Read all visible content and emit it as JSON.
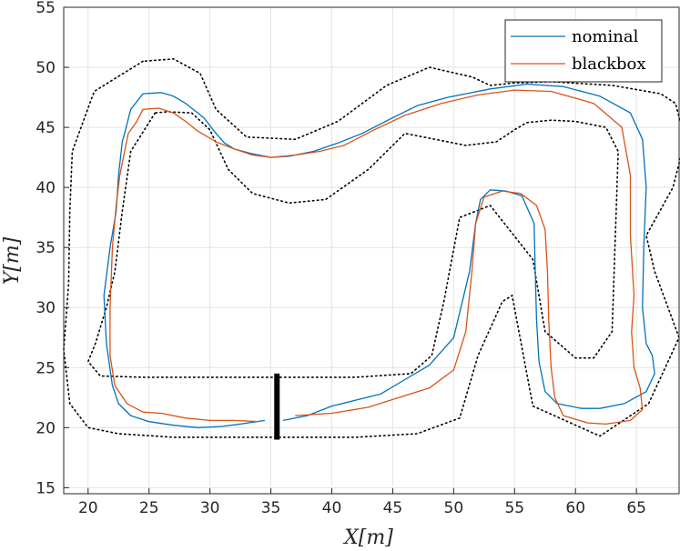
{
  "chart_data": {
    "type": "line",
    "title": "",
    "xlabel": "X[m]",
    "ylabel": "Y[m]",
    "xlim": [
      18,
      68.5
    ],
    "ylim": [
      14.5,
      55
    ],
    "xticks": [
      20,
      25,
      30,
      35,
      40,
      45,
      50,
      55,
      60,
      65
    ],
    "yticks": [
      15,
      20,
      25,
      30,
      35,
      40,
      45,
      50,
      55
    ],
    "grid": true,
    "legend": {
      "placement": "top-right",
      "entries": [
        "nominal",
        "blackbox"
      ]
    },
    "colors": {
      "nominal": "#0072BD",
      "blackbox": "#D95319",
      "boundary": "#000000",
      "finish_line": "#000000"
    },
    "finish_line": {
      "x": [
        35.5,
        35.5
      ],
      "y": [
        19.0,
        24.5
      ]
    },
    "track_outer": {
      "x": [
        24.5,
        20.5,
        18.7,
        18.5,
        18.4,
        18.0,
        18.5,
        20.0,
        22.5,
        27.0,
        32.0,
        37.0,
        42.0,
        47.0,
        50.5,
        52.0,
        54.0,
        54.8,
        56.5,
        62.0,
        66.0,
        68.5,
        66.5,
        65.8,
        68.0,
        69.0,
        68.2,
        67.0,
        63.0,
        58.0,
        55.0,
        53.0,
        51.5,
        48.0,
        44.5,
        40.5,
        37.0,
        33.0,
        30.5,
        29.2,
        27.0,
        24.5
      ],
      "y": [
        50.5,
        48.0,
        43.0,
        38.0,
        32.0,
        26.5,
        22.0,
        20.0,
        19.5,
        19.2,
        19.2,
        19.2,
        19.2,
        19.5,
        20.8,
        26.0,
        30.5,
        31.0,
        21.8,
        19.3,
        22.0,
        27.5,
        33.0,
        36.0,
        40.0,
        44.0,
        47.0,
        47.8,
        48.5,
        48.8,
        48.7,
        48.5,
        49.2,
        50.0,
        48.5,
        45.5,
        44.0,
        44.2,
        46.5,
        49.5,
        50.7,
        50.5
      ]
    },
    "track_inner": {
      "x": [
        25.5,
        23.5,
        22.8,
        22.2,
        21.5,
        20.6,
        20.0,
        21.0,
        24.5,
        28.0,
        35.0,
        42.0,
        46.5,
        48.2,
        49.2,
        50.5,
        53.0,
        56.5,
        57.5,
        60.0,
        61.5,
        63.0,
        63.2,
        63.5,
        62.5,
        60.0,
        58.0,
        56.0,
        55.0,
        53.5,
        51.0,
        46.0,
        43.0,
        39.5,
        36.5,
        33.5,
        31.5,
        30.0,
        28.5,
        26.5,
        25.5
      ],
      "y": [
        46.2,
        43.0,
        38.0,
        33.0,
        30.0,
        27.0,
        25.5,
        24.3,
        24.2,
        24.2,
        24.2,
        24.2,
        24.5,
        26.0,
        30.5,
        37.5,
        38.5,
        34.0,
        28.0,
        25.8,
        25.8,
        28.0,
        34.0,
        43.0,
        45.0,
        45.5,
        45.6,
        45.4,
        44.8,
        43.8,
        43.5,
        44.5,
        41.5,
        39.0,
        38.7,
        39.5,
        41.5,
        44.8,
        46.2,
        46.3,
        46.2
      ]
    },
    "series": [
      {
        "name": "nominal",
        "x": [
          34.5,
          32.5,
          31.0,
          29.0,
          27.0,
          25.0,
          23.5,
          22.5,
          22.0,
          21.5,
          21.3,
          21.8,
          22.3,
          22.5,
          22.8,
          23.0,
          23.5,
          24.5,
          26.0,
          27.0,
          28.0,
          29.5,
          30.5,
          31.2,
          32.0,
          33.5,
          35.0,
          36.5,
          38.5,
          40.5,
          42.5,
          45.0,
          47.0,
          49.5,
          53.0,
          56.0,
          59.0,
          62.0,
          64.5,
          65.5,
          65.8,
          65.6,
          65.5,
          65.8,
          66.3,
          66.5,
          65.8,
          64.0,
          62.0,
          60.5,
          58.5,
          57.5,
          57.0,
          56.8,
          56.7,
          56.6,
          55.6,
          54.3,
          53.0,
          52.2,
          51.8,
          51.3,
          50.0,
          48.0,
          46.0,
          44.0,
          42.0,
          40.0,
          38.0,
          36.0
        ],
        "y": [
          20.6,
          20.3,
          20.1,
          20.0,
          20.2,
          20.5,
          21.0,
          22.0,
          23.5,
          27.0,
          31.0,
          35.0,
          38.0,
          41.0,
          43.8,
          44.5,
          46.5,
          47.8,
          47.9,
          47.6,
          47.0,
          45.8,
          44.5,
          43.7,
          43.2,
          42.8,
          42.5,
          42.6,
          43.0,
          43.7,
          44.5,
          45.8,
          46.8,
          47.5,
          48.2,
          48.6,
          48.4,
          47.6,
          46.2,
          44.0,
          40.0,
          35.0,
          30.0,
          27.0,
          26.0,
          24.5,
          23.0,
          22.0,
          21.6,
          21.6,
          22.0,
          23.0,
          25.5,
          29.0,
          33.0,
          37.0,
          39.3,
          39.7,
          39.8,
          39.0,
          37.0,
          33.0,
          27.5,
          25.2,
          24.0,
          22.8,
          22.3,
          21.8,
          21.0,
          20.6
        ]
      },
      {
        "name": "blackbox",
        "x": [
          34.0,
          32.0,
          30.0,
          28.0,
          26.0,
          24.5,
          23.2,
          22.2,
          21.8,
          21.8,
          22.0,
          22.3,
          22.6,
          23.0,
          23.3,
          24.0,
          24.5,
          25.8,
          27.0,
          28.0,
          29.0,
          30.5,
          32.0,
          33.5,
          35.0,
          37.0,
          39.0,
          41.0,
          43.5,
          46.0,
          49.0,
          52.0,
          55.0,
          58.0,
          61.5,
          63.8,
          64.5,
          64.5,
          64.8,
          64.6,
          64.8,
          65.3,
          65.5,
          64.5,
          62.5,
          61.0,
          59.0,
          58.3,
          58.0,
          57.8,
          57.7,
          57.5,
          56.8,
          55.5,
          54.0,
          52.5,
          51.8,
          51.5,
          51.0,
          50.0,
          48.0,
          45.5,
          43.0,
          40.0,
          37.0
        ],
        "y": [
          20.5,
          20.6,
          20.6,
          20.8,
          21.2,
          21.3,
          22.0,
          23.5,
          26.0,
          30.0,
          35.0,
          38.5,
          41.0,
          43.0,
          44.5,
          45.5,
          46.5,
          46.6,
          46.2,
          45.5,
          44.7,
          43.8,
          43.2,
          42.7,
          42.5,
          42.7,
          43.0,
          43.5,
          44.8,
          46.0,
          47.0,
          47.7,
          48.1,
          48.0,
          47.0,
          45.0,
          41.0,
          36.0,
          31.0,
          28.0,
          25.0,
          23.3,
          21.5,
          20.6,
          20.3,
          20.4,
          21.0,
          22.5,
          25.0,
          29.0,
          33.0,
          36.5,
          38.5,
          39.5,
          39.7,
          39.2,
          37.0,
          33.0,
          28.0,
          24.8,
          23.3,
          22.5,
          21.7,
          21.2,
          21.0
        ]
      }
    ]
  }
}
